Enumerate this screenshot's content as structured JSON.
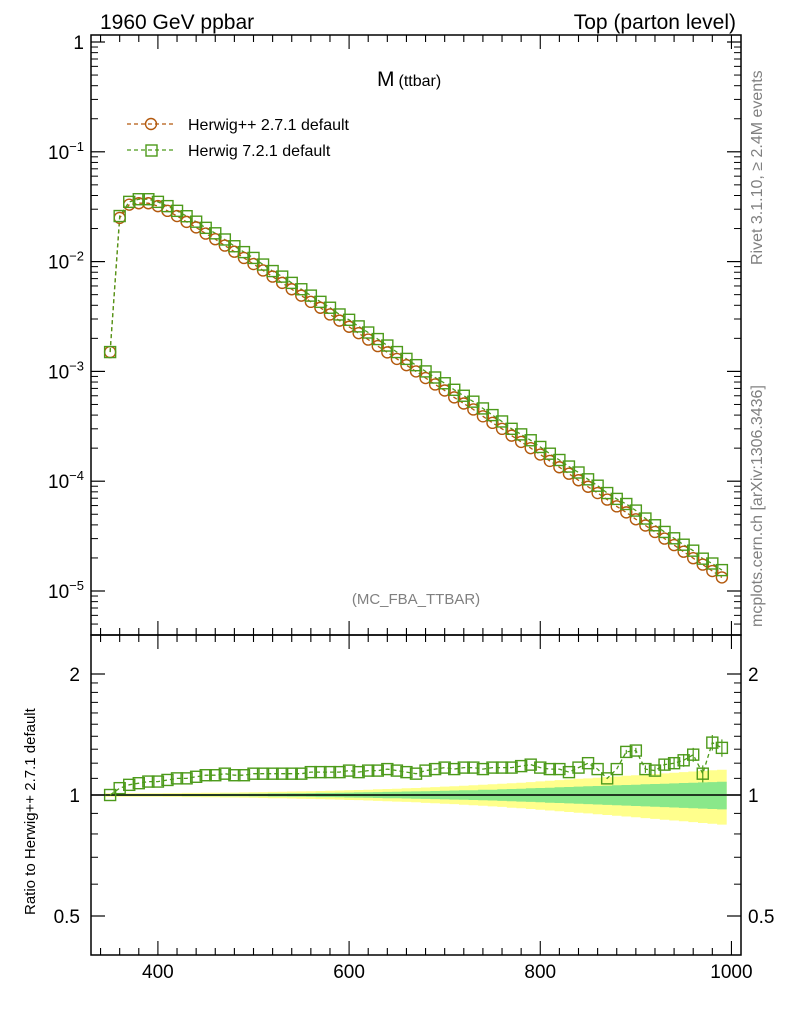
{
  "header": {
    "left": "1960 GeV ppbar",
    "right": "Top (parton level)"
  },
  "side": {
    "rivet": "Rivet 3.1.10, ≥ 2.4M events",
    "mcplots": "mcplots.cern.ch [arXiv:1306.3436]"
  },
  "plot_title": {
    "main": "M",
    "sub": "(ttbar)"
  },
  "analysis_tag": "(MC_FBA_TTBAR)",
  "ratio_ylabel": "Ratio to Herwig++ 2.7.1 default",
  "colors": {
    "herwigpp": "#b3590d",
    "herwig7": "#4c9a1a",
    "band_inner": "#8ae88a",
    "band_outer": "#ffff8c"
  },
  "chart_data": [
    {
      "type": "line",
      "panel": "main",
      "yscale": "log",
      "ylim": [
        4e-06,
        1.2
      ],
      "xlim": [
        330,
        1010
      ],
      "ytick_labels": [
        "1",
        "10^-1",
        "10^-2",
        "10^-3",
        "10^-4",
        "10^-5"
      ],
      "x": [
        350,
        360,
        370,
        380,
        390,
        400,
        410,
        420,
        430,
        440,
        450,
        460,
        470,
        480,
        490,
        500,
        510,
        520,
        530,
        540,
        550,
        560,
        570,
        580,
        590,
        600,
        610,
        620,
        630,
        640,
        650,
        660,
        670,
        680,
        690,
        700,
        710,
        720,
        730,
        740,
        750,
        760,
        770,
        780,
        790,
        800,
        810,
        820,
        830,
        840,
        850,
        860,
        870,
        880,
        890,
        900,
        910,
        920,
        930,
        940,
        950,
        960,
        970,
        980,
        990
      ],
      "series": [
        {
          "name": "Herwig++ 2.7.1 default",
          "marker": "circle",
          "values": [
            0.0015,
            0.025,
            0.033,
            0.034,
            0.034,
            0.032,
            0.029,
            0.026,
            0.023,
            0.0205,
            0.018,
            0.016,
            0.014,
            0.0123,
            0.0108,
            0.0095,
            0.0083,
            0.0073,
            0.0064,
            0.0056,
            0.0049,
            0.0043,
            0.0038,
            0.0033,
            0.0029,
            0.00255,
            0.00223,
            0.00195,
            0.0017,
            0.00149,
            0.0013,
            0.00114,
            0.001,
            0.00087,
            0.00076,
            0.00067,
            0.00058,
            0.00051,
            0.00045,
            0.00039,
            0.00034,
            0.0003,
            0.00026,
            0.000228,
            0.0002,
            0.000175,
            0.000153,
            0.000134,
            0.000117,
            0.000102,
            8.9e-05,
            7.8e-05,
            6.8e-05,
            5.9e-05,
            5.2e-05,
            4.5e-05,
            3.95e-05,
            3.45e-05,
            3e-05,
            2.62e-05,
            2.28e-05,
            1.99e-05,
            1.74e-05,
            1.52e-05,
            1.33e-05
          ]
        },
        {
          "name": "Herwig 7.2.1 default",
          "marker": "square",
          "values": [
            0.0015,
            0.026,
            0.035,
            0.037,
            0.037,
            0.035,
            0.032,
            0.029,
            0.0259,
            0.0231,
            0.0203,
            0.0181,
            0.0159,
            0.0138,
            0.0122,
            0.0108,
            0.0094,
            0.0082,
            0.0073,
            0.0064,
            0.0056,
            0.0049,
            0.0043,
            0.0038,
            0.0033,
            0.00295,
            0.00257,
            0.00226,
            0.00197,
            0.00172,
            0.0015,
            0.0013,
            0.00114,
            0.001,
            0.00088,
            0.00078,
            0.00068,
            0.0006,
            0.00053,
            0.00046,
            0.0004,
            0.00035,
            0.0003,
            0.000267,
            0.000236,
            0.000205,
            0.000178,
            0.000156,
            0.000136,
            0.00012,
            0.000104,
            9.1e-05,
            7.8e-05,
            6.9e-05,
            6.2e-05,
            5.4e-05,
            4.57e-05,
            3.97e-05,
            3.45e-05,
            3.02e-05,
            2.64e-05,
            2.33e-05,
            1.97e-05,
            1.78e-05,
            1.55e-05
          ]
        }
      ]
    },
    {
      "type": "line",
      "panel": "ratio",
      "yscale": "log",
      "ylim": [
        0.4,
        2.35
      ],
      "xlim": [
        330,
        1010
      ],
      "ylabel": "Ratio to Herwig++ 2.7.1 default",
      "xtick_labels": [
        "400",
        "600",
        "800",
        "1000"
      ],
      "ytick_labels": [
        "0.5",
        "1",
        "2"
      ],
      "x": [
        350,
        360,
        370,
        380,
        390,
        400,
        410,
        420,
        430,
        440,
        450,
        460,
        470,
        480,
        490,
        500,
        510,
        520,
        530,
        540,
        550,
        560,
        570,
        580,
        590,
        600,
        610,
        620,
        630,
        640,
        650,
        660,
        670,
        680,
        690,
        700,
        710,
        720,
        730,
        740,
        750,
        760,
        770,
        780,
        790,
        800,
        810,
        820,
        830,
        840,
        850,
        860,
        870,
        880,
        890,
        900,
        910,
        920,
        930,
        940,
        950,
        960,
        970,
        980,
        990
      ],
      "series": [
        {
          "name": "Herwig 7.2.1 default",
          "marker": "square",
          "values": [
            1.0,
            1.04,
            1.06,
            1.07,
            1.08,
            1.08,
            1.09,
            1.1,
            1.1,
            1.11,
            1.12,
            1.12,
            1.13,
            1.12,
            1.12,
            1.13,
            1.13,
            1.13,
            1.13,
            1.13,
            1.13,
            1.14,
            1.14,
            1.14,
            1.14,
            1.15,
            1.14,
            1.15,
            1.15,
            1.16,
            1.15,
            1.14,
            1.13,
            1.15,
            1.16,
            1.17,
            1.16,
            1.17,
            1.17,
            1.16,
            1.17,
            1.17,
            1.17,
            1.18,
            1.19,
            1.17,
            1.16,
            1.16,
            1.14,
            1.17,
            1.2,
            1.16,
            1.1,
            1.16,
            1.28,
            1.29,
            1.16,
            1.15,
            1.19,
            1.2,
            1.22,
            1.26,
            1.13,
            1.35,
            1.31
          ]
        }
      ],
      "band_inner_halfwidth": [
        0.005,
        0.005,
        0.005,
        0.005,
        0.005,
        0.005,
        0.005,
        0.005,
        0.006,
        0.006,
        0.006,
        0.006,
        0.007,
        0.007,
        0.007,
        0.008,
        0.008,
        0.009,
        0.009,
        0.01,
        0.01,
        0.011,
        0.012,
        0.012,
        0.013,
        0.014,
        0.015,
        0.016,
        0.017,
        0.018,
        0.019,
        0.02,
        0.021,
        0.022,
        0.023,
        0.025,
        0.026,
        0.027,
        0.028,
        0.03,
        0.031,
        0.033,
        0.035,
        0.037,
        0.039,
        0.041,
        0.043,
        0.045,
        0.047,
        0.049,
        0.051,
        0.053,
        0.055,
        0.057,
        0.059,
        0.061,
        0.063,
        0.065,
        0.067,
        0.069,
        0.071,
        0.073,
        0.075,
        0.077,
        0.079
      ],
      "band_outer_halfwidth": [
        0.01,
        0.01,
        0.01,
        0.01,
        0.01,
        0.01,
        0.011,
        0.011,
        0.012,
        0.012,
        0.013,
        0.013,
        0.014,
        0.014,
        0.015,
        0.016,
        0.017,
        0.018,
        0.019,
        0.02,
        0.021,
        0.022,
        0.023,
        0.025,
        0.026,
        0.028,
        0.029,
        0.031,
        0.033,
        0.035,
        0.037,
        0.039,
        0.041,
        0.044,
        0.046,
        0.049,
        0.051,
        0.054,
        0.057,
        0.06,
        0.063,
        0.066,
        0.07,
        0.073,
        0.077,
        0.081,
        0.085,
        0.089,
        0.093,
        0.097,
        0.1,
        0.104,
        0.108,
        0.112,
        0.116,
        0.12,
        0.124,
        0.128,
        0.132,
        0.136,
        0.14,
        0.144,
        0.148,
        0.152,
        0.156
      ]
    }
  ]
}
